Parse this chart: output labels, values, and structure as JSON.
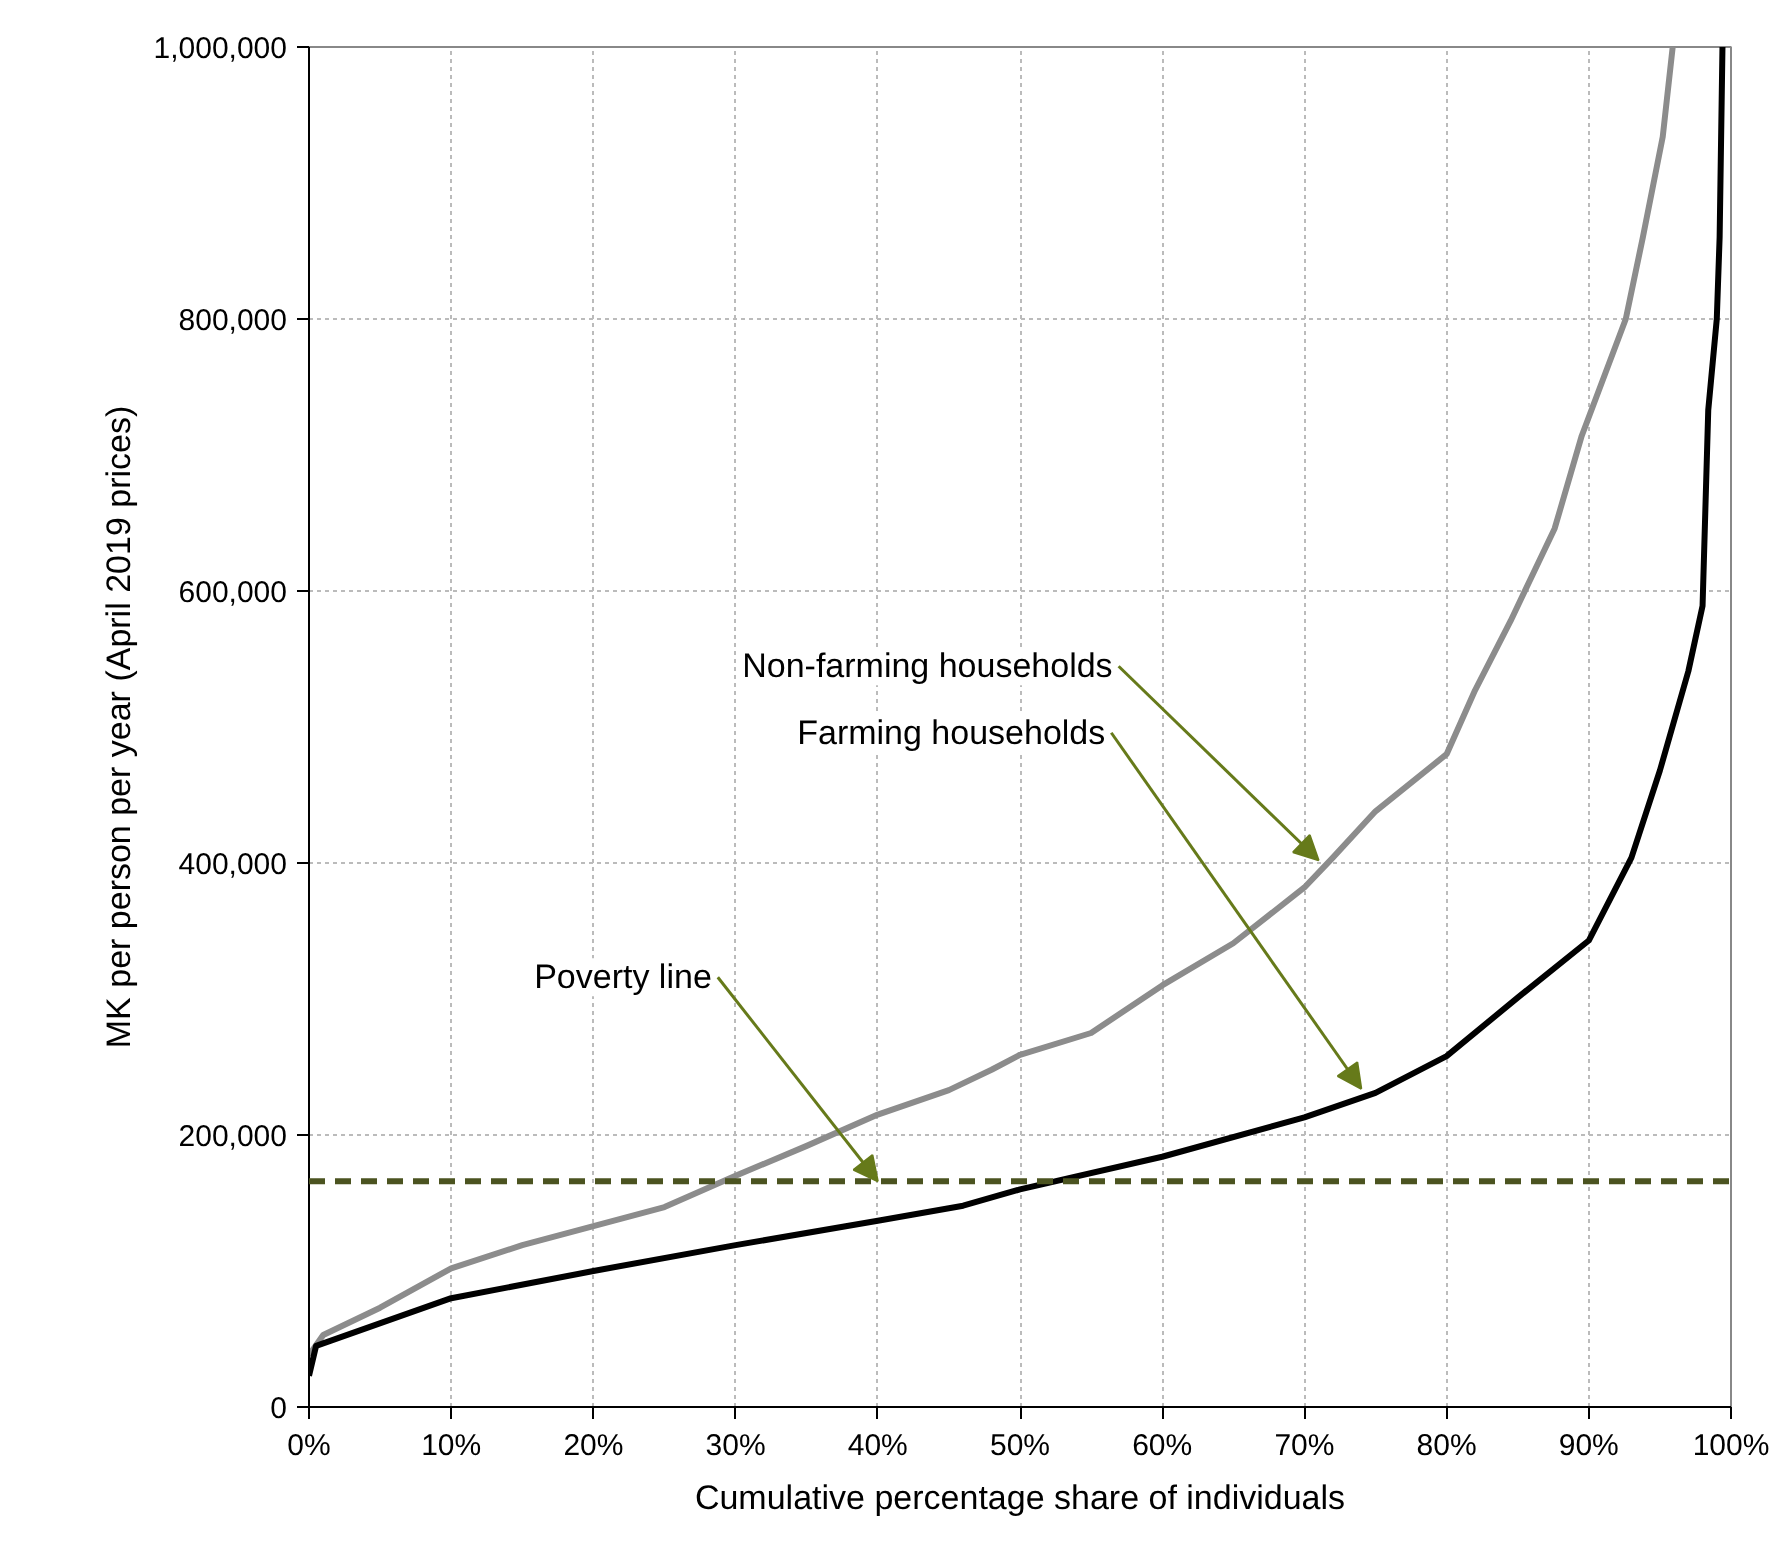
{
  "chart_data": {
    "type": "line",
    "xlabel": "Cumulative percentage share of individuals",
    "ylabel": "MK per person per year (April 2019 prices)",
    "xlim": [
      0,
      100
    ],
    "ylim": [
      0,
      1000000
    ],
    "xticks": [
      {
        "value": 0,
        "label": "0%"
      },
      {
        "value": 10,
        "label": "10%"
      },
      {
        "value": 20,
        "label": "20%"
      },
      {
        "value": 30,
        "label": "30%"
      },
      {
        "value": 40,
        "label": "40%"
      },
      {
        "value": 50,
        "label": "50%"
      },
      {
        "value": 60,
        "label": "60%"
      },
      {
        "value": 70,
        "label": "70%"
      },
      {
        "value": 80,
        "label": "80%"
      },
      {
        "value": 90,
        "label": "90%"
      },
      {
        "value": 100,
        "label": "100%"
      }
    ],
    "yticks": [
      {
        "value": 0,
        "label": "0"
      },
      {
        "value": 200000,
        "label": "200,000"
      },
      {
        "value": 400000,
        "label": "400,000"
      },
      {
        "value": 600000,
        "label": "600,000"
      },
      {
        "value": 800000,
        "label": "800,000"
      },
      {
        "value": 1000000,
        "label": "1,000,000"
      }
    ],
    "grid": true,
    "line_style": "solid",
    "series": [
      {
        "color": "#8c8c8c",
        "x": [
          0,
          1,
          5,
          10,
          15,
          20,
          25,
          30,
          35,
          40,
          45,
          48,
          50,
          55,
          60,
          65,
          70,
          72,
          75,
          80,
          82,
          84.5,
          87.6,
          89.5,
          92.6,
          93.8,
          95.2,
          95.9
        ],
        "values": [
          38000,
          53000,
          73000,
          102000,
          119000,
          133000,
          147000,
          170000,
          192000,
          215000,
          233000,
          248000,
          259000,
          275000,
          310000,
          341000,
          382000,
          404000,
          438000,
          480000,
          527000,
          578000,
          646000,
          714000,
          800000,
          860000,
          934000,
          1000000
        ]
      },
      {
        "color": "#000000",
        "x": [
          0,
          0.5,
          10,
          20,
          30,
          40,
          46,
          50,
          60,
          70,
          75,
          80,
          85,
          90,
          93,
          95,
          97,
          98,
          98.4,
          99,
          99.2,
          99.4
        ],
        "values": [
          23000,
          45000,
          80000,
          100000,
          119000,
          137000,
          148000,
          160000,
          184000,
          213000,
          231000,
          258000,
          301000,
          343000,
          404000,
          468000,
          541000,
          589000,
          733000,
          800000,
          860000,
          1000000
        ]
      }
    ],
    "ref_lines": [
      {
        "axis": "y",
        "value": 166000,
        "color": "#4b5320",
        "line_style": "dashed"
      }
    ],
    "annotations": [
      {
        "text": "Non-farming households",
        "x": 71,
        "y": 402000
      },
      {
        "text": "Farming households",
        "x": 74,
        "y": 234000
      },
      {
        "text": "Poverty line",
        "x": 40,
        "y": 166000
      }
    ]
  }
}
